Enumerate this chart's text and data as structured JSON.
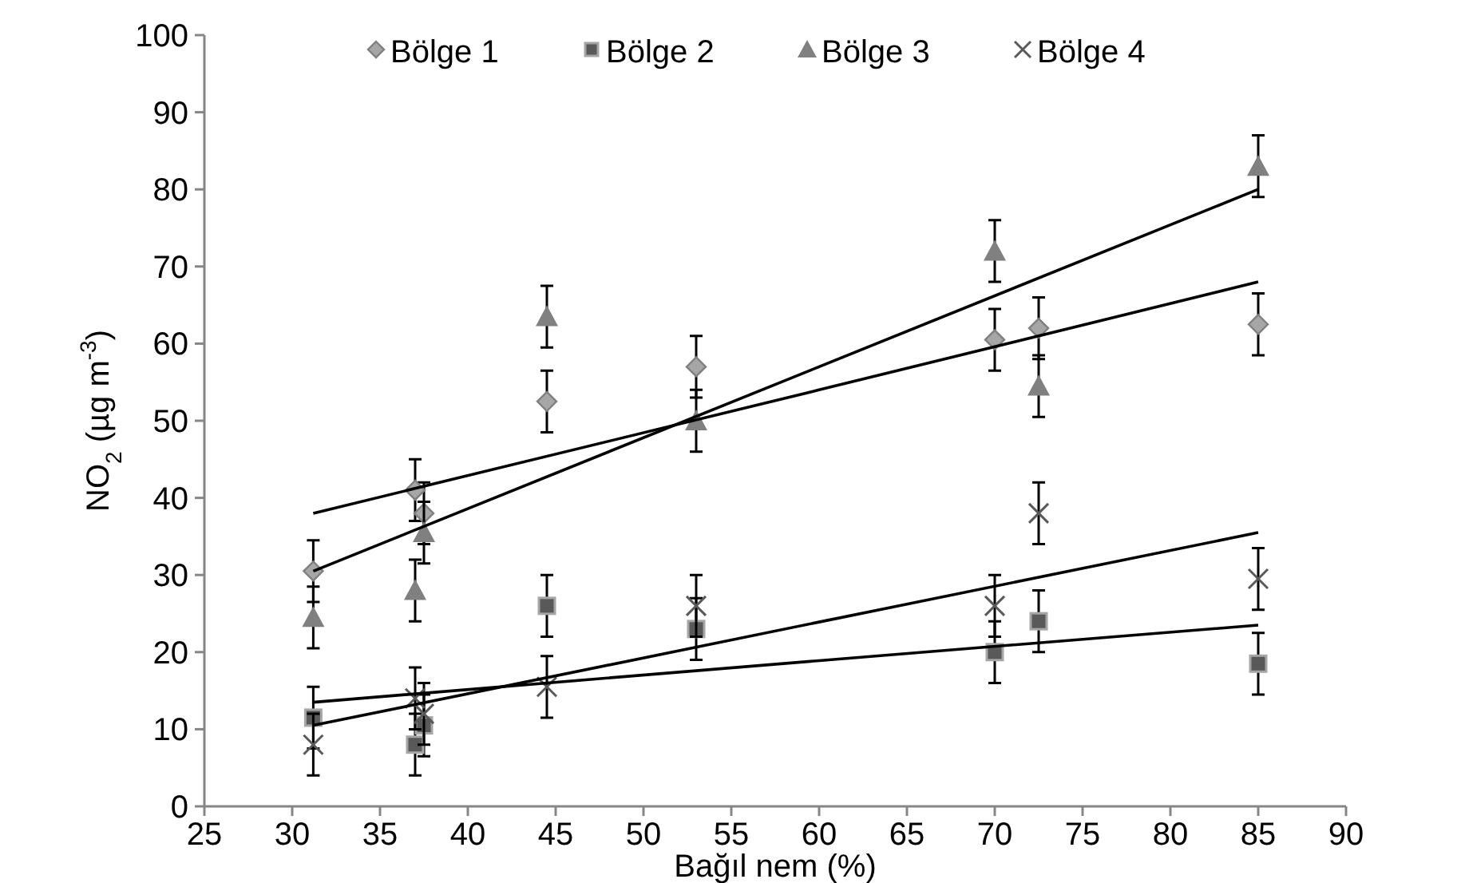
{
  "chart_data": {
    "type": "scatter",
    "xlabel": "Bağıl nem (%)",
    "ylabel": "NO$_{2}$ (µg m$^{-3}$)",
    "xlim": [
      25,
      90
    ],
    "xticks": [
      25,
      30,
      35,
      40,
      45,
      50,
      55,
      60,
      65,
      70,
      75,
      80,
      85,
      90
    ],
    "ylim": [
      0,
      100
    ],
    "yticks": [
      0,
      10,
      20,
      30,
      40,
      50,
      60,
      70,
      80,
      90,
      100
    ],
    "grid": false,
    "legend": "top",
    "x": [
      31.2,
      37,
      37.5,
      44.5,
      53,
      70,
      72.5,
      85
    ],
    "series": [
      {
        "name": "Bölge 1",
        "color": "#a6a6a6",
        "marker": "diamond",
        "values": [
          30.5,
          41,
          38,
          52.5,
          57,
          60.5,
          62,
          62.5
        ],
        "errors": [
          4,
          4,
          4,
          4,
          4,
          4,
          4,
          4
        ]
      },
      {
        "name": "Bölge 2",
        "color": "#595959",
        "marker": "square",
        "values": [
          11.5,
          8,
          10.5,
          26,
          23,
          20,
          24,
          18.5
        ],
        "errors": [
          4,
          4,
          4,
          4,
          4,
          4,
          4,
          4
        ]
      },
      {
        "name": "Bölge 3",
        "color": "#808080",
        "marker": "triangle",
        "values": [
          24.5,
          28,
          35.5,
          63.5,
          50,
          72,
          54.5,
          83
        ],
        "errors": [
          4,
          4,
          4,
          4,
          4,
          4,
          4,
          4
        ]
      },
      {
        "name": "Bölge 4",
        "color": "#595959",
        "marker": "cross",
        "values": [
          8,
          14,
          12,
          15.5,
          26,
          26,
          38,
          29.5
        ],
        "errors": [
          4,
          4,
          4,
          4,
          4,
          4,
          4,
          4
        ]
      },
      {
        "type": "line",
        "color": "#000000",
        "marker": "none",
        "x": [
          31.2,
          60,
          85
        ],
        "values": [
          38,
          54,
          68
        ]
      },
      {
        "type": "line",
        "color": "#000000",
        "marker": "none",
        "x": [
          31.2,
          60,
          85
        ],
        "values": [
          13.5,
          18.9,
          23.5
        ]
      },
      {
        "type": "line",
        "color": "#000000",
        "marker": "none",
        "x": [
          31.2,
          60,
          85
        ],
        "values": [
          30.5,
          57,
          80
        ]
      },
      {
        "type": "line",
        "color": "#000000",
        "marker": "none",
        "x": [
          31.2,
          60,
          85
        ],
        "values": [
          10.5,
          23.9,
          35.5
        ]
      }
    ]
  }
}
